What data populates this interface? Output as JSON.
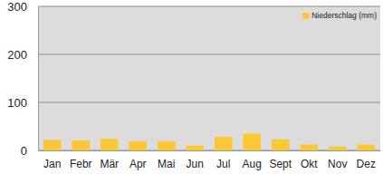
{
  "chart_data": {
    "type": "bar",
    "categories": [
      "Jan",
      "Febr",
      "Mär",
      "Apr",
      "Mai",
      "Jun",
      "Jul",
      "Aug",
      "Sept",
      "Okt",
      "Nov",
      "Dez"
    ],
    "series": [
      {
        "name": "Niederschlag (mm)",
        "color": "#fcc734",
        "values": [
          22,
          21,
          24,
          19,
          19,
          10,
          28,
          35,
          23,
          12,
          8,
          12
        ]
      }
    ],
    "ylim": [
      0,
      300
    ],
    "yticks": [
      0,
      100,
      200,
      300
    ],
    "grid": true,
    "legend": "top-right"
  }
}
